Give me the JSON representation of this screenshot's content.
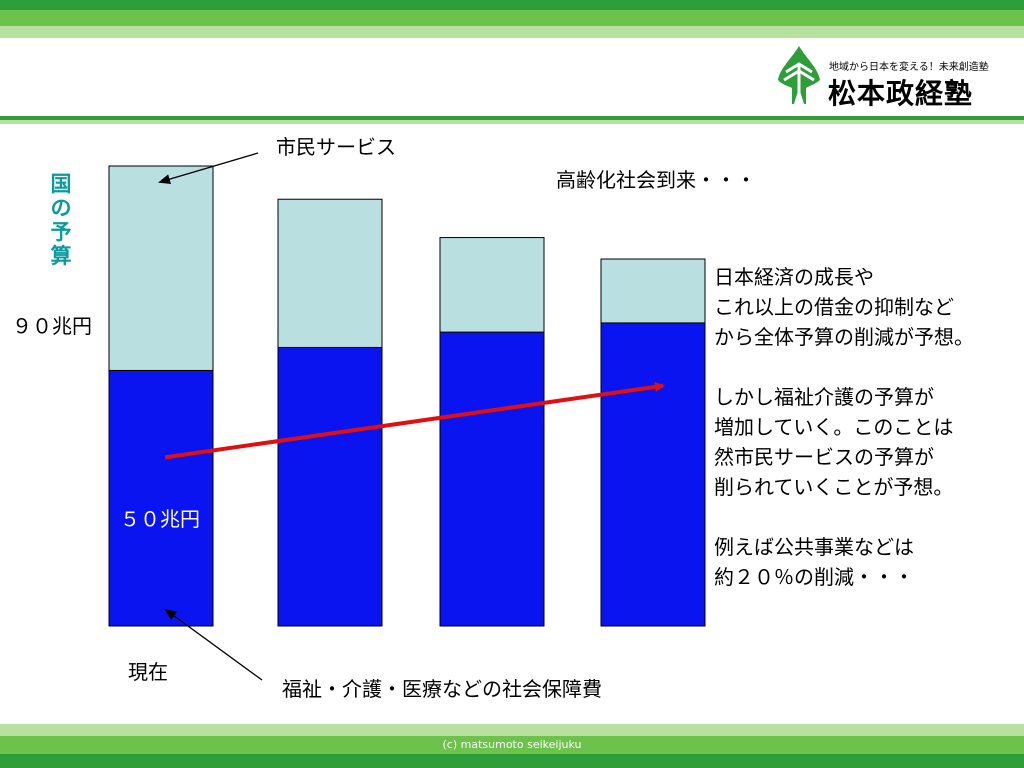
{
  "colors": {
    "band_top_1": "#2e9e3a",
    "band_top_2": "#6cc24a",
    "band_top_3": "#b8e0a0",
    "band_mid_1": "#2e9e3a",
    "band_mid_2": "#b8e0a0",
    "band_bot_1": "#b8e0a0",
    "band_bot_2": "#6cc24a",
    "band_bot_3": "#2e9e3a",
    "welfare": "#0a14f0",
    "civic": "#b9dfe0",
    "arrow": "#e01010",
    "ylabel": "#0a9aa0",
    "logo_tree": "#2e9e3a"
  },
  "header": {
    "logo_tagline": "地域から日本を変える！未来創造塾",
    "logo_name": "松本政経塾",
    "logo_icon": "pine-tree-icon"
  },
  "chart_data": {
    "type": "bar",
    "stacked": true,
    "categories": [
      "現在",
      "",
      "",
      ""
    ],
    "series": [
      {
        "name": "福祉・介護・医療などの社会保障費",
        "values": [
          50,
          54.5,
          57.5,
          59.3
        ]
      },
      {
        "name": "市民サービス",
        "values": [
          40,
          29,
          18.5,
          12.5
        ]
      }
    ],
    "ylim": [
      0,
      90
    ],
    "ylabel": "国の予算",
    "annotations": {
      "total_label": "９０兆円",
      "welfare_label": "５０兆円",
      "current_label": "現在",
      "civic_callout": "市民サービス",
      "welfare_callout": "福祉・介護・医療などの社会保障費",
      "aging_note": "高齢化社会到来・・・"
    },
    "trend_arrow": {
      "from_category": 0,
      "from_value": 33,
      "to_category": 3,
      "to_value": 47
    },
    "grid": false
  },
  "notes": [
    "日本経済の成長や",
    "これ以上の借金の抑制など",
    "から全体予算の削減が予想。",
    "",
    "しかし福祉介護の予算が",
    "増加していく。このことは",
    "然市民サービスの予算が",
    "削られていくことが予想。",
    "",
    "例えば公共事業などは",
    "約２０％の削減・・・"
  ],
  "footer": {
    "copyright": "(c) matsumoto seikeijuku"
  }
}
